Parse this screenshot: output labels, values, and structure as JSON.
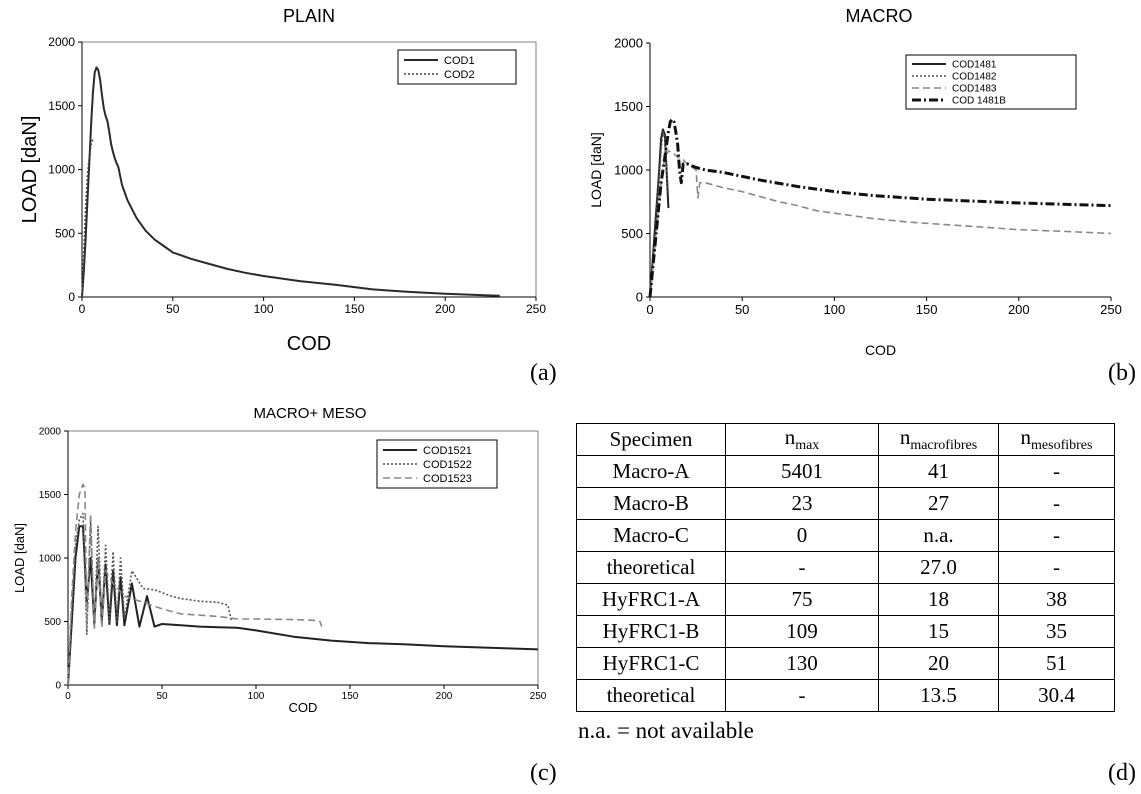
{
  "panel_labels": {
    "a": "(a)",
    "b": "(b)",
    "c": "(c)",
    "d": "(d)"
  },
  "chart_data": [
    {
      "type": "line",
      "title": "PLAIN",
      "xlabel": "COD",
      "ylabel": "LOAD [daN]",
      "xlim": [
        0,
        250
      ],
      "ylim": [
        0,
        2000
      ],
      "xticks": [
        0,
        50,
        100,
        150,
        200,
        250
      ],
      "yticks": [
        0,
        500,
        1000,
        1500,
        2000
      ],
      "grid": false,
      "legend_position": "top-right",
      "series": [
        {
          "name": "COD1",
          "style": "solid",
          "color": "#2a2a2a",
          "x": [
            0,
            1,
            2,
            3,
            4,
            5,
            6,
            7,
            8,
            9,
            10,
            11,
            12,
            13,
            14,
            15,
            16,
            17,
            18,
            19,
            20,
            22,
            25,
            30,
            35,
            40,
            45,
            50,
            60,
            70,
            80,
            90,
            100,
            120,
            140,
            160,
            180,
            200,
            220,
            230
          ],
          "y": [
            0,
            200,
            450,
            750,
            1050,
            1350,
            1600,
            1760,
            1800,
            1780,
            1700,
            1580,
            1480,
            1420,
            1380,
            1300,
            1200,
            1140,
            1090,
            1050,
            1020,
            880,
            760,
            620,
            520,
            450,
            400,
            350,
            300,
            260,
            220,
            190,
            165,
            125,
            95,
            60,
            40,
            25,
            15,
            10
          ]
        },
        {
          "name": "COD2",
          "style": "dotted",
          "color": "#444444",
          "x": [
            0,
            1,
            2,
            3,
            4,
            5,
            6
          ],
          "y": [
            0,
            350,
            700,
            950,
            1100,
            1200,
            1240
          ]
        }
      ]
    },
    {
      "type": "line",
      "title": "MACRO",
      "xlabel": "COD",
      "ylabel": "LOAD [daN]",
      "xlim": [
        0,
        250
      ],
      "ylim": [
        0,
        2000
      ],
      "xticks": [
        0,
        50,
        100,
        150,
        200,
        250
      ],
      "yticks": [
        0,
        500,
        1000,
        1500,
        2000
      ],
      "grid": false,
      "legend_position": "top-right",
      "series": [
        {
          "name": "COD1481",
          "style": "solid",
          "color": "#222222",
          "x": [
            0,
            2,
            3,
            4,
            5,
            6,
            7,
            8,
            9,
            10
          ],
          "y": [
            0,
            400,
            600,
            800,
            1000,
            1250,
            1320,
            1280,
            1000,
            700
          ]
        },
        {
          "name": "COD1482",
          "style": "dotted",
          "color": "#555555",
          "x": [
            0,
            2,
            4,
            6,
            7,
            8,
            9,
            10
          ],
          "y": [
            0,
            350,
            750,
            1150,
            1300,
            1250,
            1000,
            800
          ]
        },
        {
          "name": "COD1483",
          "style": "dashed",
          "color": "#888888",
          "x": [
            0,
            2,
            4,
            6,
            8,
            10,
            12,
            15,
            18,
            20,
            25,
            26,
            27,
            30,
            40,
            50,
            60,
            70,
            80,
            90,
            100,
            120,
            140,
            160,
            180,
            200,
            220,
            250
          ],
          "y": [
            0,
            300,
            600,
            900,
            1100,
            1150,
            1140,
            1100,
            1080,
            1050,
            1000,
            780,
            900,
            900,
            860,
            830,
            790,
            750,
            720,
            680,
            660,
            620,
            590,
            570,
            550,
            530,
            520,
            500
          ]
        },
        {
          "name": "COD 1481B",
          "style": "dashdot",
          "color": "#111111",
          "x": [
            0,
            2,
            4,
            6,
            8,
            10,
            11,
            12,
            13,
            14,
            15,
            16,
            17,
            18,
            20,
            25,
            30,
            40,
            50,
            60,
            80,
            100,
            120,
            150,
            200,
            250
          ],
          "y": [
            0,
            300,
            600,
            900,
            1100,
            1300,
            1380,
            1400,
            1380,
            1300,
            1200,
            1000,
            900,
            1050,
            1050,
            1020,
            1000,
            980,
            950,
            920,
            870,
            830,
            800,
            770,
            740,
            720
          ]
        }
      ]
    },
    {
      "type": "line",
      "title": "MACRO+ MESO",
      "xlabel": "COD",
      "ylabel": "LOAD [daN]",
      "xlim": [
        0,
        250
      ],
      "ylim": [
        0,
        2000
      ],
      "xticks": [
        0,
        50,
        100,
        150,
        200,
        250
      ],
      "yticks": [
        0,
        500,
        1000,
        1500,
        2000
      ],
      "grid": false,
      "legend_position": "top-right",
      "series": [
        {
          "name": "COD1521",
          "style": "solid",
          "color": "#222222",
          "x": [
            0,
            2,
            4,
            6,
            8,
            10,
            12,
            14,
            16,
            18,
            20,
            22,
            24,
            26,
            28,
            30,
            34,
            38,
            42,
            46,
            50,
            60,
            70,
            80,
            90,
            100,
            120,
            140,
            160,
            180,
            200,
            220,
            250
          ],
          "y": [
            0,
            500,
            1000,
            1250,
            1250,
            650,
            1000,
            480,
            1000,
            500,
            950,
            480,
            900,
            470,
            850,
            470,
            800,
            460,
            700,
            460,
            480,
            470,
            460,
            455,
            450,
            430,
            380,
            350,
            330,
            320,
            305,
            295,
            280
          ]
        },
        {
          "name": "COD1522",
          "style": "dotted",
          "color": "#555555",
          "x": [
            0,
            2,
            4,
            6,
            8,
            10,
            12,
            14,
            16,
            18,
            20,
            22,
            24,
            26,
            28,
            30,
            34,
            40,
            46,
            55,
            60,
            70,
            80,
            85,
            87
          ],
          "y": [
            0,
            600,
            1100,
            1300,
            1350,
            400,
            1300,
            450,
            1250,
            500,
            1100,
            500,
            1050,
            500,
            1000,
            520,
            900,
            760,
            750,
            700,
            680,
            660,
            650,
            630,
            500
          ]
        },
        {
          "name": "COD1523",
          "style": "dashed",
          "color": "#888888",
          "x": [
            0,
            2,
            4,
            6,
            8,
            9,
            10,
            12,
            14,
            16,
            18,
            20,
            24,
            30,
            40,
            50,
            60,
            80,
            90,
            100,
            120,
            130,
            134,
            135
          ],
          "y": [
            0,
            700,
            1200,
            1500,
            1580,
            1550,
            450,
            1350,
            450,
            1000,
            450,
            900,
            800,
            700,
            650,
            600,
            560,
            540,
            520,
            520,
            515,
            510,
            500,
            460
          ]
        }
      ]
    }
  ],
  "table": {
    "headers": [
      {
        "main": "Specimen",
        "sub": ""
      },
      {
        "main": "n",
        "sub": "max"
      },
      {
        "main": "n",
        "sub": "macrofibres"
      },
      {
        "main": "n",
        "sub": "mesofibres"
      }
    ],
    "rows": [
      [
        "Macro-A",
        "5401",
        "41",
        "-"
      ],
      [
        "Macro-B",
        "23",
        "27",
        "-"
      ],
      [
        "Macro-C",
        "0",
        "n.a.",
        "-"
      ],
      [
        "theoretical",
        "-",
        "27.0",
        "-"
      ],
      [
        "HyFRC1-A",
        "75",
        "18",
        "38"
      ],
      [
        "HyFRC1-B",
        "109",
        "15",
        "35"
      ],
      [
        "HyFRC1-C",
        "130",
        "20",
        "51"
      ],
      [
        "theoretical",
        "-",
        "13.5",
        "30.4"
      ]
    ],
    "note": "n.a. = not available"
  }
}
